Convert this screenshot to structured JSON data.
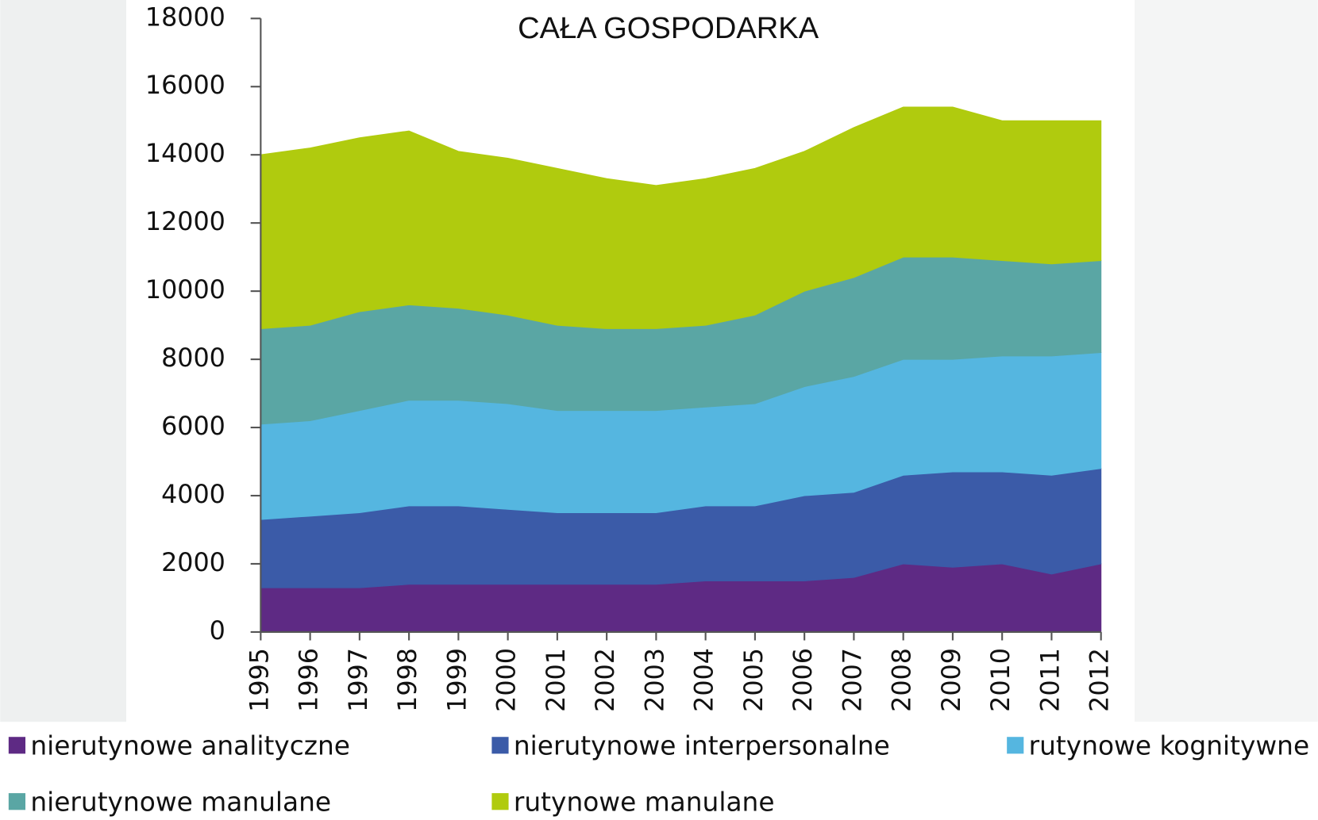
{
  "chart_data": {
    "type": "stacked-area",
    "title": "CAŁA GOSPODARKA",
    "categories": [
      "1995",
      "1996",
      "1997",
      "1998",
      "1999",
      "2000",
      "2001",
      "2002",
      "2003",
      "2004",
      "2005",
      "2006",
      "2007",
      "2008",
      "2009",
      "2010",
      "2011",
      "2012"
    ],
    "series": [
      {
        "name": "nierutynowe analityczne",
        "color": "#5e2a84",
        "values": [
          1300,
          1300,
          1300,
          1400,
          1400,
          1400,
          1400,
          1400,
          1400,
          1500,
          1500,
          1500,
          1600,
          2000,
          1900,
          2000,
          1700,
          2000
        ]
      },
      {
        "name": "nierutynowe interpersonalne",
        "color": "#3b5ba8",
        "values": [
          2000,
          2100,
          2200,
          2300,
          2300,
          2200,
          2100,
          2100,
          2100,
          2200,
          2200,
          2500,
          2500,
          2600,
          2800,
          2700,
          2900,
          2800
        ]
      },
      {
        "name": "rutynowe kognitywne",
        "color": "#55b6e0",
        "values": [
          2800,
          2800,
          3000,
          3100,
          3100,
          3100,
          3000,
          3000,
          3000,
          2900,
          3000,
          3200,
          3400,
          3400,
          3300,
          3400,
          3500,
          3400
        ]
      },
      {
        "name": "nierutynowe manulane",
        "color": "#5aa6a4",
        "values": [
          2800,
          2800,
          2900,
          2800,
          2700,
          2600,
          2500,
          2400,
          2400,
          2400,
          2600,
          2800,
          2900,
          3000,
          3000,
          2800,
          2700,
          2700
        ]
      },
      {
        "name": "rutynowe manulane",
        "color": "#b0cb0e",
        "values": [
          5100,
          5200,
          5100,
          5100,
          4600,
          4600,
          4600,
          4400,
          4200,
          4300,
          4300,
          4100,
          4400,
          4400,
          4400,
          4100,
          4200,
          4100
        ]
      }
    ],
    "ylim": [
      0,
      18000
    ],
    "yticks": [
      0,
      2000,
      4000,
      6000,
      8000,
      10000,
      12000,
      14000,
      16000,
      18000
    ]
  }
}
